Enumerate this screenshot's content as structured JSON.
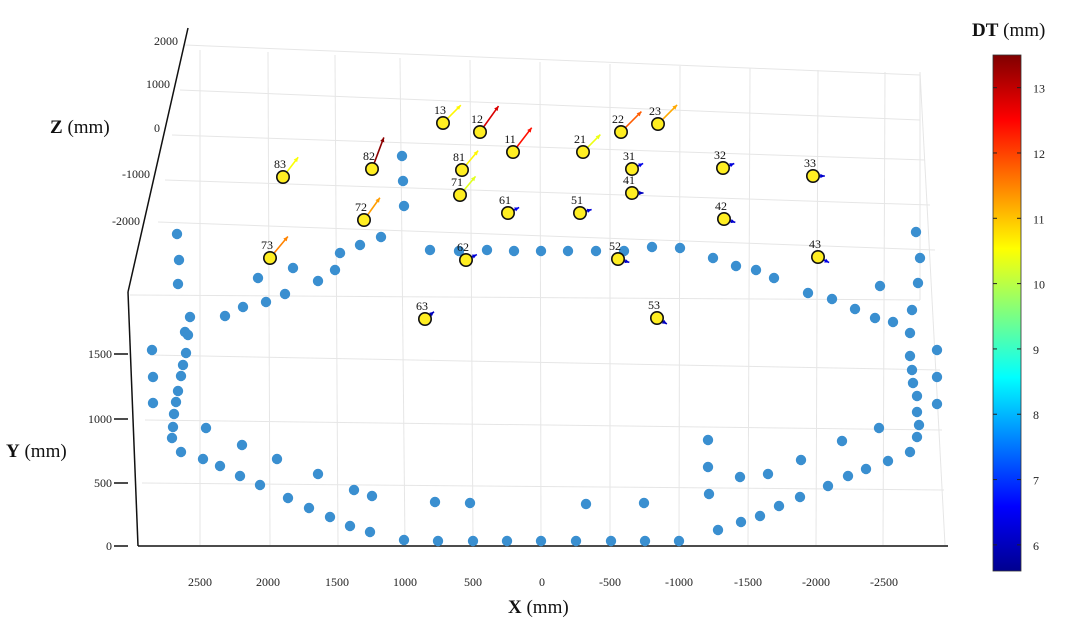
{
  "chart_data": {
    "type": "scatter3d",
    "title": "",
    "xlabel_bold": "X",
    "xlabel_unit": " (mm)",
    "ylabel_bold": "Y",
    "ylabel_unit": " (mm)",
    "zlabel_bold": "Z",
    "zlabel_unit": " (mm)",
    "xticks": [
      "2500",
      "2000",
      "1500",
      "1000",
      "500",
      "0",
      "-500",
      "-1000",
      "-1500",
      "-2000",
      "-2500"
    ],
    "yticks": [
      "0",
      "500",
      "1000",
      "1500"
    ],
    "zticks": [
      "2000",
      "1000",
      "0",
      "-1000",
      "-2000"
    ],
    "colorbar": {
      "label_bold": "DT",
      "label_unit": " (mm)",
      "ticks": [
        "13",
        "12",
        "11",
        "10",
        "9",
        "8",
        "7",
        "6"
      ],
      "range": [
        5.6,
        13.5
      ],
      "colormap": "jet"
    },
    "ring_marker_color": "#3a8fd0",
    "sensor_fill_color": "#ffee22",
    "sensors": [
      {
        "id": "13",
        "dt": 10.6
      },
      {
        "id": "12",
        "dt": 12.8
      },
      {
        "id": "11",
        "dt": 12.4
      },
      {
        "id": "21",
        "dt": 10.4
      },
      {
        "id": "22",
        "dt": 11.8
      },
      {
        "id": "23",
        "dt": 11.2
      },
      {
        "id": "31",
        "dt": 6.4
      },
      {
        "id": "32",
        "dt": 6.3
      },
      {
        "id": "33",
        "dt": 6.2
      },
      {
        "id": "41",
        "dt": 6.1
      },
      {
        "id": "42",
        "dt": 6.2
      },
      {
        "id": "43",
        "dt": 6.4
      },
      {
        "id": "51",
        "dt": 6.3
      },
      {
        "id": "52",
        "dt": 6.2
      },
      {
        "id": "53",
        "dt": 6.1
      },
      {
        "id": "61",
        "dt": 6.4
      },
      {
        "id": "62",
        "dt": 6.3
      },
      {
        "id": "63",
        "dt": 6.1
      },
      {
        "id": "71",
        "dt": 10.3
      },
      {
        "id": "72",
        "dt": 11.3
      },
      {
        "id": "73",
        "dt": 11.5
      },
      {
        "id": "81",
        "dt": 10.6
      },
      {
        "id": "82",
        "dt": 13.4
      },
      {
        "id": "83",
        "dt": 10.5
      }
    ]
  }
}
